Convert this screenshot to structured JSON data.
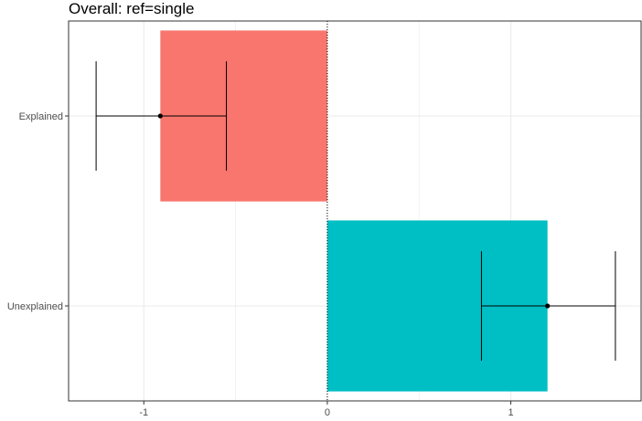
{
  "chart_data": {
    "type": "bar",
    "orientation": "horizontal",
    "title": "Overall: ref=single",
    "xlabel": "",
    "ylabel": "",
    "categories": [
      "Explained",
      "Unexplained"
    ],
    "values": [
      -0.91,
      1.2
    ],
    "colors": [
      "#F8766D",
      "#00BFC4"
    ],
    "error_bars": [
      {
        "category": "Explained",
        "center": -0.91,
        "low": -1.26,
        "high": -0.55
      },
      {
        "category": "Unexplained",
        "center": 1.2,
        "low": 0.84,
        "high": 1.57
      }
    ],
    "xlim": [
      -1.41,
      1.71
    ],
    "x_ticks": [
      -1,
      0,
      1
    ],
    "x_tick_labels": [
      "-1",
      "0",
      "1"
    ],
    "reference_line": {
      "x": 0,
      "style": "dotted"
    },
    "grid": true,
    "legend": "none"
  }
}
